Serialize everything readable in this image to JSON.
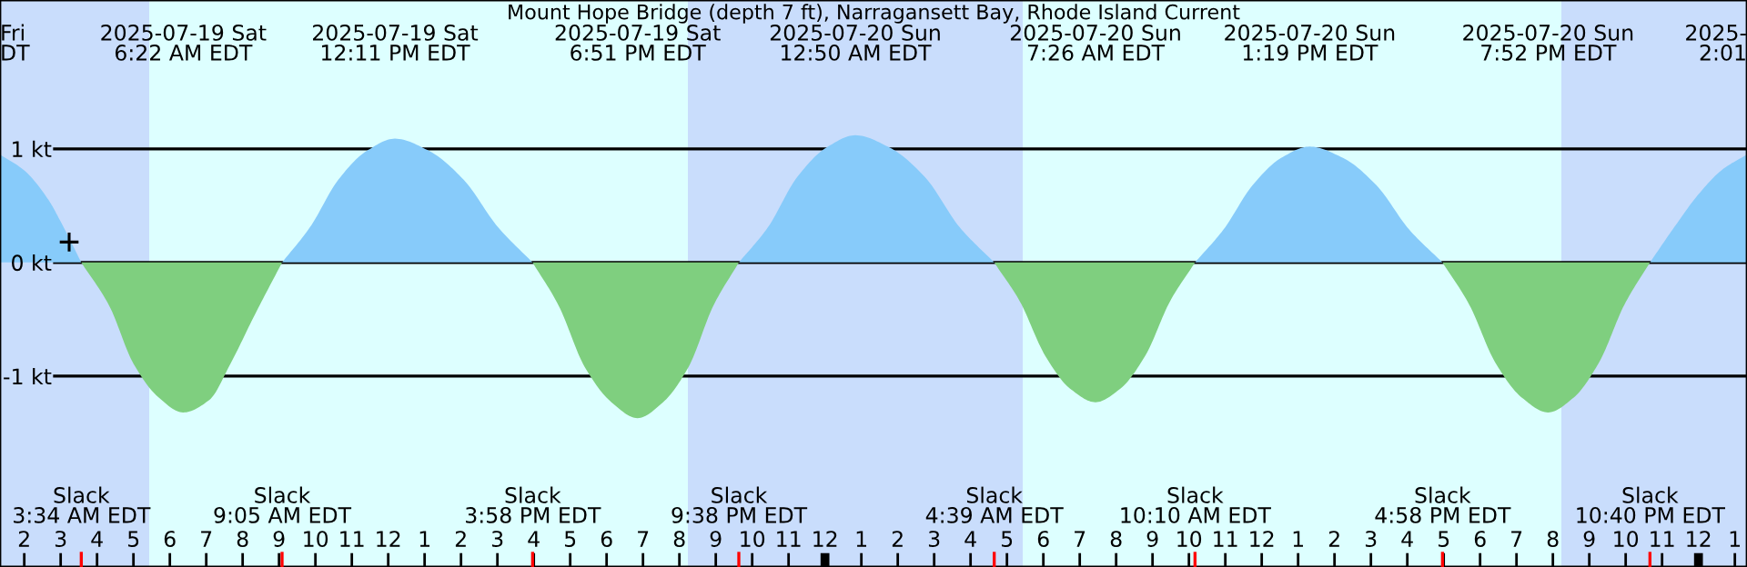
{
  "chart_data": {
    "type": "area",
    "title": "Mount Hope Bridge (depth 7 ft), Narragansett Bay, Rhode Island Current",
    "xlim": [
      "2025-07-19T01:20",
      "2025-07-21T01:20"
    ],
    "ylim": [
      -2.68,
      2.31
    ],
    "yticks": [
      {
        "value": 1,
        "label": "1 kt"
      },
      {
        "value": 0,
        "label": "0 kt"
      },
      {
        "value": -1,
        "label": "-1 kt"
      }
    ],
    "xticks": [
      {
        "value": "2025-07-19T02:00",
        "label": "2"
      },
      {
        "value": "2025-07-19T03:00",
        "label": "3"
      },
      {
        "value": "2025-07-19T04:00",
        "label": "4"
      },
      {
        "value": "2025-07-19T05:00",
        "label": "5"
      },
      {
        "value": "2025-07-19T06:00",
        "label": "6"
      },
      {
        "value": "2025-07-19T07:00",
        "label": "7"
      },
      {
        "value": "2025-07-19T08:00",
        "label": "8"
      },
      {
        "value": "2025-07-19T09:00",
        "label": "9"
      },
      {
        "value": "2025-07-19T10:00",
        "label": "10"
      },
      {
        "value": "2025-07-19T11:00",
        "label": "11"
      },
      {
        "value": "2025-07-19T12:00",
        "label": "12"
      },
      {
        "value": "2025-07-19T13:00",
        "label": "1"
      },
      {
        "value": "2025-07-19T14:00",
        "label": "2"
      },
      {
        "value": "2025-07-19T15:00",
        "label": "3"
      },
      {
        "value": "2025-07-19T16:00",
        "label": "4"
      },
      {
        "value": "2025-07-19T17:00",
        "label": "5"
      },
      {
        "value": "2025-07-19T18:00",
        "label": "6"
      },
      {
        "value": "2025-07-19T19:00",
        "label": "7"
      },
      {
        "value": "2025-07-19T20:00",
        "label": "8"
      },
      {
        "value": "2025-07-19T21:00",
        "label": "9"
      },
      {
        "value": "2025-07-19T22:00",
        "label": "10"
      },
      {
        "value": "2025-07-19T23:00",
        "label": "11"
      },
      {
        "value": "2025-07-20T00:00",
        "label": "12"
      },
      {
        "value": "2025-07-20T01:00",
        "label": "1"
      },
      {
        "value": "2025-07-20T02:00",
        "label": "2"
      },
      {
        "value": "2025-07-20T03:00",
        "label": "3"
      },
      {
        "value": "2025-07-20T04:00",
        "label": "4"
      },
      {
        "value": "2025-07-20T05:00",
        "label": "5"
      },
      {
        "value": "2025-07-20T06:00",
        "label": "6"
      },
      {
        "value": "2025-07-20T07:00",
        "label": "7"
      },
      {
        "value": "2025-07-20T08:00",
        "label": "8"
      },
      {
        "value": "2025-07-20T09:00",
        "label": "9"
      },
      {
        "value": "2025-07-20T10:00",
        "label": "10"
      },
      {
        "value": "2025-07-20T11:00",
        "label": "11"
      },
      {
        "value": "2025-07-20T12:00",
        "label": "12"
      },
      {
        "value": "2025-07-20T13:00",
        "label": "1"
      },
      {
        "value": "2025-07-20T14:00",
        "label": "2"
      },
      {
        "value": "2025-07-20T15:00",
        "label": "3"
      },
      {
        "value": "2025-07-20T16:00",
        "label": "4"
      },
      {
        "value": "2025-07-20T17:00",
        "label": "5"
      },
      {
        "value": "2025-07-20T18:00",
        "label": "6"
      },
      {
        "value": "2025-07-20T19:00",
        "label": "7"
      },
      {
        "value": "2025-07-20T20:00",
        "label": "8"
      },
      {
        "value": "2025-07-20T21:00",
        "label": "9"
      },
      {
        "value": "2025-07-20T22:00",
        "label": "10"
      },
      {
        "value": "2025-07-20T23:00",
        "label": "11"
      },
      {
        "value": "2025-07-21T00:00",
        "label": "12"
      },
      {
        "value": "2025-07-21T01:00",
        "label": "1"
      }
    ],
    "grid": "y",
    "bands": [
      {
        "axis": "x",
        "from": "2025-07-19T01:20",
        "to": "2025-07-19T05:26",
        "color": "#c9ddfc"
      },
      {
        "axis": "x",
        "from": "2025-07-19T05:26",
        "to": "2025-07-19T20:14",
        "color": "#ddffff"
      },
      {
        "axis": "x",
        "from": "2025-07-19T20:14",
        "to": "2025-07-20T05:26",
        "color": "#c9ddfc"
      },
      {
        "axis": "x",
        "from": "2025-07-20T05:26",
        "to": "2025-07-20T20:14",
        "color": "#ddffff"
      },
      {
        "axis": "x",
        "from": "2025-07-20T20:14",
        "to": "2025-07-21T01:20",
        "color": "#c9ddfc"
      }
    ],
    "series": [
      {
        "color": "#87cbfa",
        "x": [
          "2025-07-19T01:20",
          "2025-07-19T02:00",
          "2025-07-19T02:40",
          "2025-07-19T03:00",
          "2025-07-19T03:34",
          "2025-07-19T06:00",
          "2025-07-19T09:05",
          "2025-07-19T09:51",
          "2025-07-19T10:38",
          "2025-07-19T11:24",
          "2025-07-19T12:11",
          "2025-07-19T13:08",
          "2025-07-19T14:04",
          "2025-07-19T15:01",
          "2025-07-19T15:58",
          "2025-07-19T18:00",
          "2025-07-19T21:38",
          "2025-07-19T22:26",
          "2025-07-19T23:14",
          "2025-07-20T00:02",
          "2025-07-20T00:50",
          "2025-07-20T01:47",
          "2025-07-20T02:45",
          "2025-07-20T03:42",
          "2025-07-20T04:39",
          "2025-07-20T07:00",
          "2025-07-20T10:10",
          "2025-07-20T10:57",
          "2025-07-20T11:45",
          "2025-07-20T12:32",
          "2025-07-20T13:19",
          "2025-07-20T14:14",
          "2025-07-20T15:09",
          "2025-07-20T16:03",
          "2025-07-20T16:58",
          "2025-07-20T19:00",
          "2025-07-20T22:40",
          "2025-07-20T23:20",
          "2025-07-21T00:00",
          "2025-07-21T00:40",
          "2025-07-21T01:20"
        ],
        "values": [
          0.95,
          0.81,
          0.55,
          0.36,
          0,
          null,
          0,
          0.31,
          0.73,
          0.98,
          1.09,
          0.98,
          0.73,
          0.31,
          0,
          null,
          0,
          0.31,
          0.75,
          1.01,
          1.12,
          1.01,
          0.75,
          0.31,
          0,
          null,
          0,
          0.29,
          0.68,
          0.92,
          1.02,
          0.92,
          0.68,
          0.29,
          0,
          null,
          0,
          0.31,
          0.6,
          0.82,
          0.95
        ]
      },
      {
        "color": "#7fcf7f",
        "x": [
          "2025-07-19T03:34",
          "2025-07-19T04:20",
          "2025-07-19T05:00",
          "2025-07-19T05:40",
          "2025-07-19T06:22",
          "2025-07-19T07:05",
          "2025-07-19T07:40",
          "2025-07-19T08:20",
          "2025-07-19T09:05",
          "2025-07-19T12:00",
          "2025-07-19T15:58",
          "2025-07-19T16:41",
          "2025-07-19T17:24",
          "2025-07-19T18:08",
          "2025-07-19T18:51",
          "2025-07-19T19:33",
          "2025-07-19T20:15",
          "2025-07-19T20:56",
          "2025-07-19T21:38",
          "2025-07-20T01:00",
          "2025-07-20T04:39",
          "2025-07-20T05:21",
          "2025-07-20T06:03",
          "2025-07-20T06:44",
          "2025-07-20T07:26",
          "2025-07-20T08:07",
          "2025-07-20T08:48",
          "2025-07-20T09:29",
          "2025-07-20T10:10",
          "2025-07-20T13:00",
          "2025-07-20T16:58",
          "2025-07-20T17:42",
          "2025-07-20T18:25",
          "2025-07-20T19:09",
          "2025-07-20T19:52",
          "2025-07-20T20:34",
          "2025-07-20T21:16",
          "2025-07-20T21:58",
          "2025-07-20T22:40"
        ],
        "values": [
          0,
          -0.38,
          -0.89,
          -1.18,
          -1.32,
          -1.21,
          -0.89,
          -0.46,
          0,
          null,
          0,
          -0.38,
          -0.92,
          -1.23,
          -1.37,
          -1.23,
          -0.92,
          -0.38,
          0,
          null,
          0,
          -0.34,
          -0.82,
          -1.11,
          -1.23,
          -1.11,
          -0.82,
          -0.34,
          0,
          null,
          0,
          -0.37,
          -0.88,
          -1.19,
          -1.32,
          -1.19,
          -0.88,
          -0.37,
          0
        ]
      },
      {
        "type": "scatter",
        "color": "#000000",
        "marker": "cross",
        "x": [
          "2025-07-19T03:14"
        ],
        "values": [
          0.18
        ]
      }
    ],
    "annotations": [
      "Fri\nDT",
      "2025-07-19 Sat\n6:22 AM EDT",
      "2025-07-19 Sat\n12:11 PM EDT",
      "2025-07-19 Sat\n6:51 PM EDT",
      "2025-07-20 Sun\n12:50 AM EDT",
      "2025-07-20 Sun\n7:26 AM EDT",
      "2025-07-20 Sun\n1:19 PM EDT",
      "2025-07-20 Sun\n7:52 PM EDT",
      "2025-\n2:01",
      "Slack\n3:34 AM EDT",
      "Slack\n9:05 AM EDT",
      "Slack\n3:58 PM EDT",
      "Slack\n9:38 PM EDT",
      "Slack\n4:39 AM EDT",
      "Slack\n10:10 AM EDT",
      "Slack\n4:58 PM EDT",
      "Slack\n10:40 PM EDT"
    ]
  }
}
